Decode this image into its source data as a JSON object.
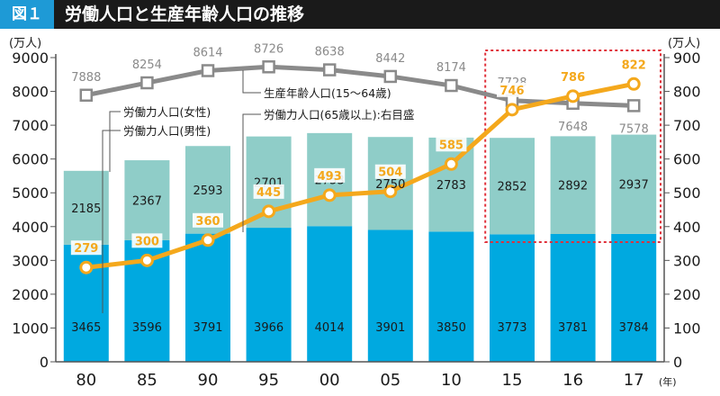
{
  "header": {
    "badge": "図１",
    "title": "労働人口と生産年齢人口の推移"
  },
  "colors": {
    "male": "#00a9e0",
    "female": "#8fcdc8",
    "working_age": "#8a8a8a",
    "over65": "#f4a81c",
    "highlight": "#e0303a"
  },
  "chart_data": {
    "type": "bar",
    "categories": [
      "80",
      "85",
      "90",
      "95",
      "00",
      "05",
      "10",
      "15",
      "16",
      "17"
    ],
    "x_unit_label": "(年)",
    "left_axis": {
      "unit_label": "(万人)",
      "ylim": [
        0,
        9000
      ],
      "ticks": [
        "0",
        "1000",
        "2000",
        "3000",
        "4000",
        "5000",
        "6000",
        "7000",
        "8000",
        "9000"
      ]
    },
    "right_axis": {
      "unit_label": "(万人)",
      "ylim": [
        0,
        900
      ],
      "ticks": [
        "0",
        "100",
        "200",
        "300",
        "400",
        "500",
        "600",
        "700",
        "800",
        "900"
      ]
    },
    "series": [
      {
        "name": "労働力人口(男性)",
        "kind": "bar-stack",
        "axis": "left",
        "values": [
          3465,
          3596,
          3791,
          3966,
          4014,
          3901,
          3850,
          3773,
          3781,
          3784
        ]
      },
      {
        "name": "労働力人口(女性)",
        "kind": "bar-stack",
        "axis": "left",
        "values": [
          2185,
          2367,
          2593,
          2701,
          2753,
          2750,
          2783,
          2852,
          2892,
          2937
        ]
      },
      {
        "name": "生産年齢人口(15〜64歳)",
        "kind": "line",
        "axis": "left",
        "values": [
          7888,
          8254,
          8614,
          8726,
          8638,
          8442,
          8174,
          7728,
          7648,
          7578
        ]
      },
      {
        "name": "労働力人口(65歳以上):右目盛",
        "kind": "line",
        "axis": "right",
        "values": [
          279,
          300,
          360,
          445,
          493,
          504,
          585,
          746,
          786,
          822
        ]
      }
    ],
    "highlight": "dashed red box around 15, 16, 17",
    "grid": false
  }
}
